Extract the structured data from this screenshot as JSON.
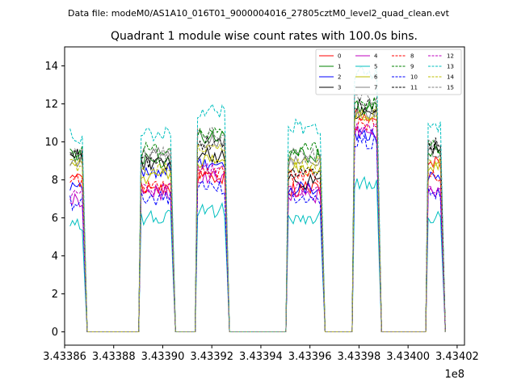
{
  "chart_data": {
    "type": "line",
    "suptitle": "Data file: modeM0/AS1A10_016T01_9000004016_27805cztM0_level2_quad_clean.evt",
    "title": "Quadrant 1 module wise count rates with 100.0s bins.",
    "xlabel": "",
    "ylabel": "",
    "x_offset_label": "1e8",
    "xlim": [
      343386.0,
      343402.3
    ],
    "ylim": [
      -0.7,
      15.0
    ],
    "x_tick_values": [
      343386,
      343388,
      343390,
      343392,
      343394,
      343396,
      343398,
      343400,
      343402
    ],
    "x_tick_labels": [
      "3.43386",
      "3.43388",
      "3.43390",
      "3.43392",
      "3.43394",
      "3.43396",
      "3.43398",
      "3.43400",
      "3.43402"
    ],
    "y_tick_values": [
      0,
      2,
      4,
      6,
      8,
      10,
      12,
      14
    ],
    "y_tick_labels": [
      "0",
      "2",
      "4",
      "6",
      "8",
      "10",
      "12",
      "14"
    ],
    "legend_position": "top-right",
    "x_unit_scale": 1000,
    "segments": [
      {
        "start": 343386.2,
        "end": 343386.9
      },
      {
        "start": 343389.1,
        "end": 343390.5
      },
      {
        "start": 343391.4,
        "end": 343392.7
      },
      {
        "start": 343395.1,
        "end": 343396.6
      },
      {
        "start": 343397.8,
        "end": 343398.9
      },
      {
        "start": 343400.8,
        "end": 343401.5
      }
    ],
    "series": [
      {
        "name": "0",
        "color": "#ff0000",
        "dash": "solid",
        "levels": [
          8.5,
          7.5,
          8.2,
          7.5,
          11.5,
          9.0
        ]
      },
      {
        "name": "1",
        "color": "#008000",
        "dash": "solid",
        "levels": [
          9.3,
          9.0,
          10.3,
          9.3,
          11.8,
          9.5
        ]
      },
      {
        "name": "2",
        "color": "#0000ff",
        "dash": "solid",
        "levels": [
          7.8,
          8.5,
          8.8,
          7.6,
          10.3,
          8.2
        ]
      },
      {
        "name": "3",
        "color": "#000000",
        "dash": "solid",
        "levels": [
          9.3,
          8.8,
          9.3,
          7.9,
          11.4,
          9.6
        ]
      },
      {
        "name": "4",
        "color": "#bf00bf",
        "dash": "solid",
        "levels": [
          6.9,
          7.3,
          8.2,
          7.2,
          10.6,
          7.3
        ]
      },
      {
        "name": "5",
        "color": "#00bfbf",
        "dash": "solid",
        "levels": [
          5.6,
          6.0,
          6.4,
          6.0,
          7.8,
          6.1
        ]
      },
      {
        "name": "6",
        "color": "#bfbf00",
        "dash": "solid",
        "levels": [
          8.7,
          8.2,
          9.0,
          8.6,
          11.2,
          8.8
        ]
      },
      {
        "name": "7",
        "color": "#808080",
        "dash": "solid",
        "levels": [
          9.0,
          9.3,
          10.0,
          8.9,
          11.6,
          9.4
        ]
      },
      {
        "name": "8",
        "color": "#ff0000",
        "dash": "dashed",
        "levels": [
          8.0,
          7.6,
          8.4,
          8.2,
          10.9,
          8.3
        ]
      },
      {
        "name": "9",
        "color": "#008000",
        "dash": "dashed",
        "levels": [
          9.4,
          9.6,
          10.5,
          9.6,
          12.0,
          9.8
        ]
      },
      {
        "name": "10",
        "color": "#0000ff",
        "dash": "dashed",
        "levels": [
          6.8,
          7.0,
          7.6,
          7.0,
          10.0,
          7.2
        ]
      },
      {
        "name": "11",
        "color": "#000000",
        "dash": "dashed",
        "levels": [
          9.2,
          9.0,
          10.0,
          8.3,
          11.9,
          9.9
        ]
      },
      {
        "name": "12",
        "color": "#bf00bf",
        "dash": "dashed",
        "levels": [
          7.2,
          7.5,
          8.5,
          7.5,
          10.8,
          7.6
        ]
      },
      {
        "name": "13",
        "color": "#00bfbf",
        "dash": "dashed",
        "levels": [
          10.3,
          10.4,
          11.6,
          10.8,
          13.6,
          10.7
        ]
      },
      {
        "name": "14",
        "color": "#bfbf00",
        "dash": "dashed",
        "levels": [
          8.8,
          8.6,
          9.6,
          8.9,
          11.4,
          9.1
        ]
      },
      {
        "name": "15",
        "color": "#808080",
        "dash": "dashed",
        "levels": [
          9.5,
          9.4,
          10.4,
          9.3,
          12.3,
          9.9
        ]
      }
    ]
  }
}
